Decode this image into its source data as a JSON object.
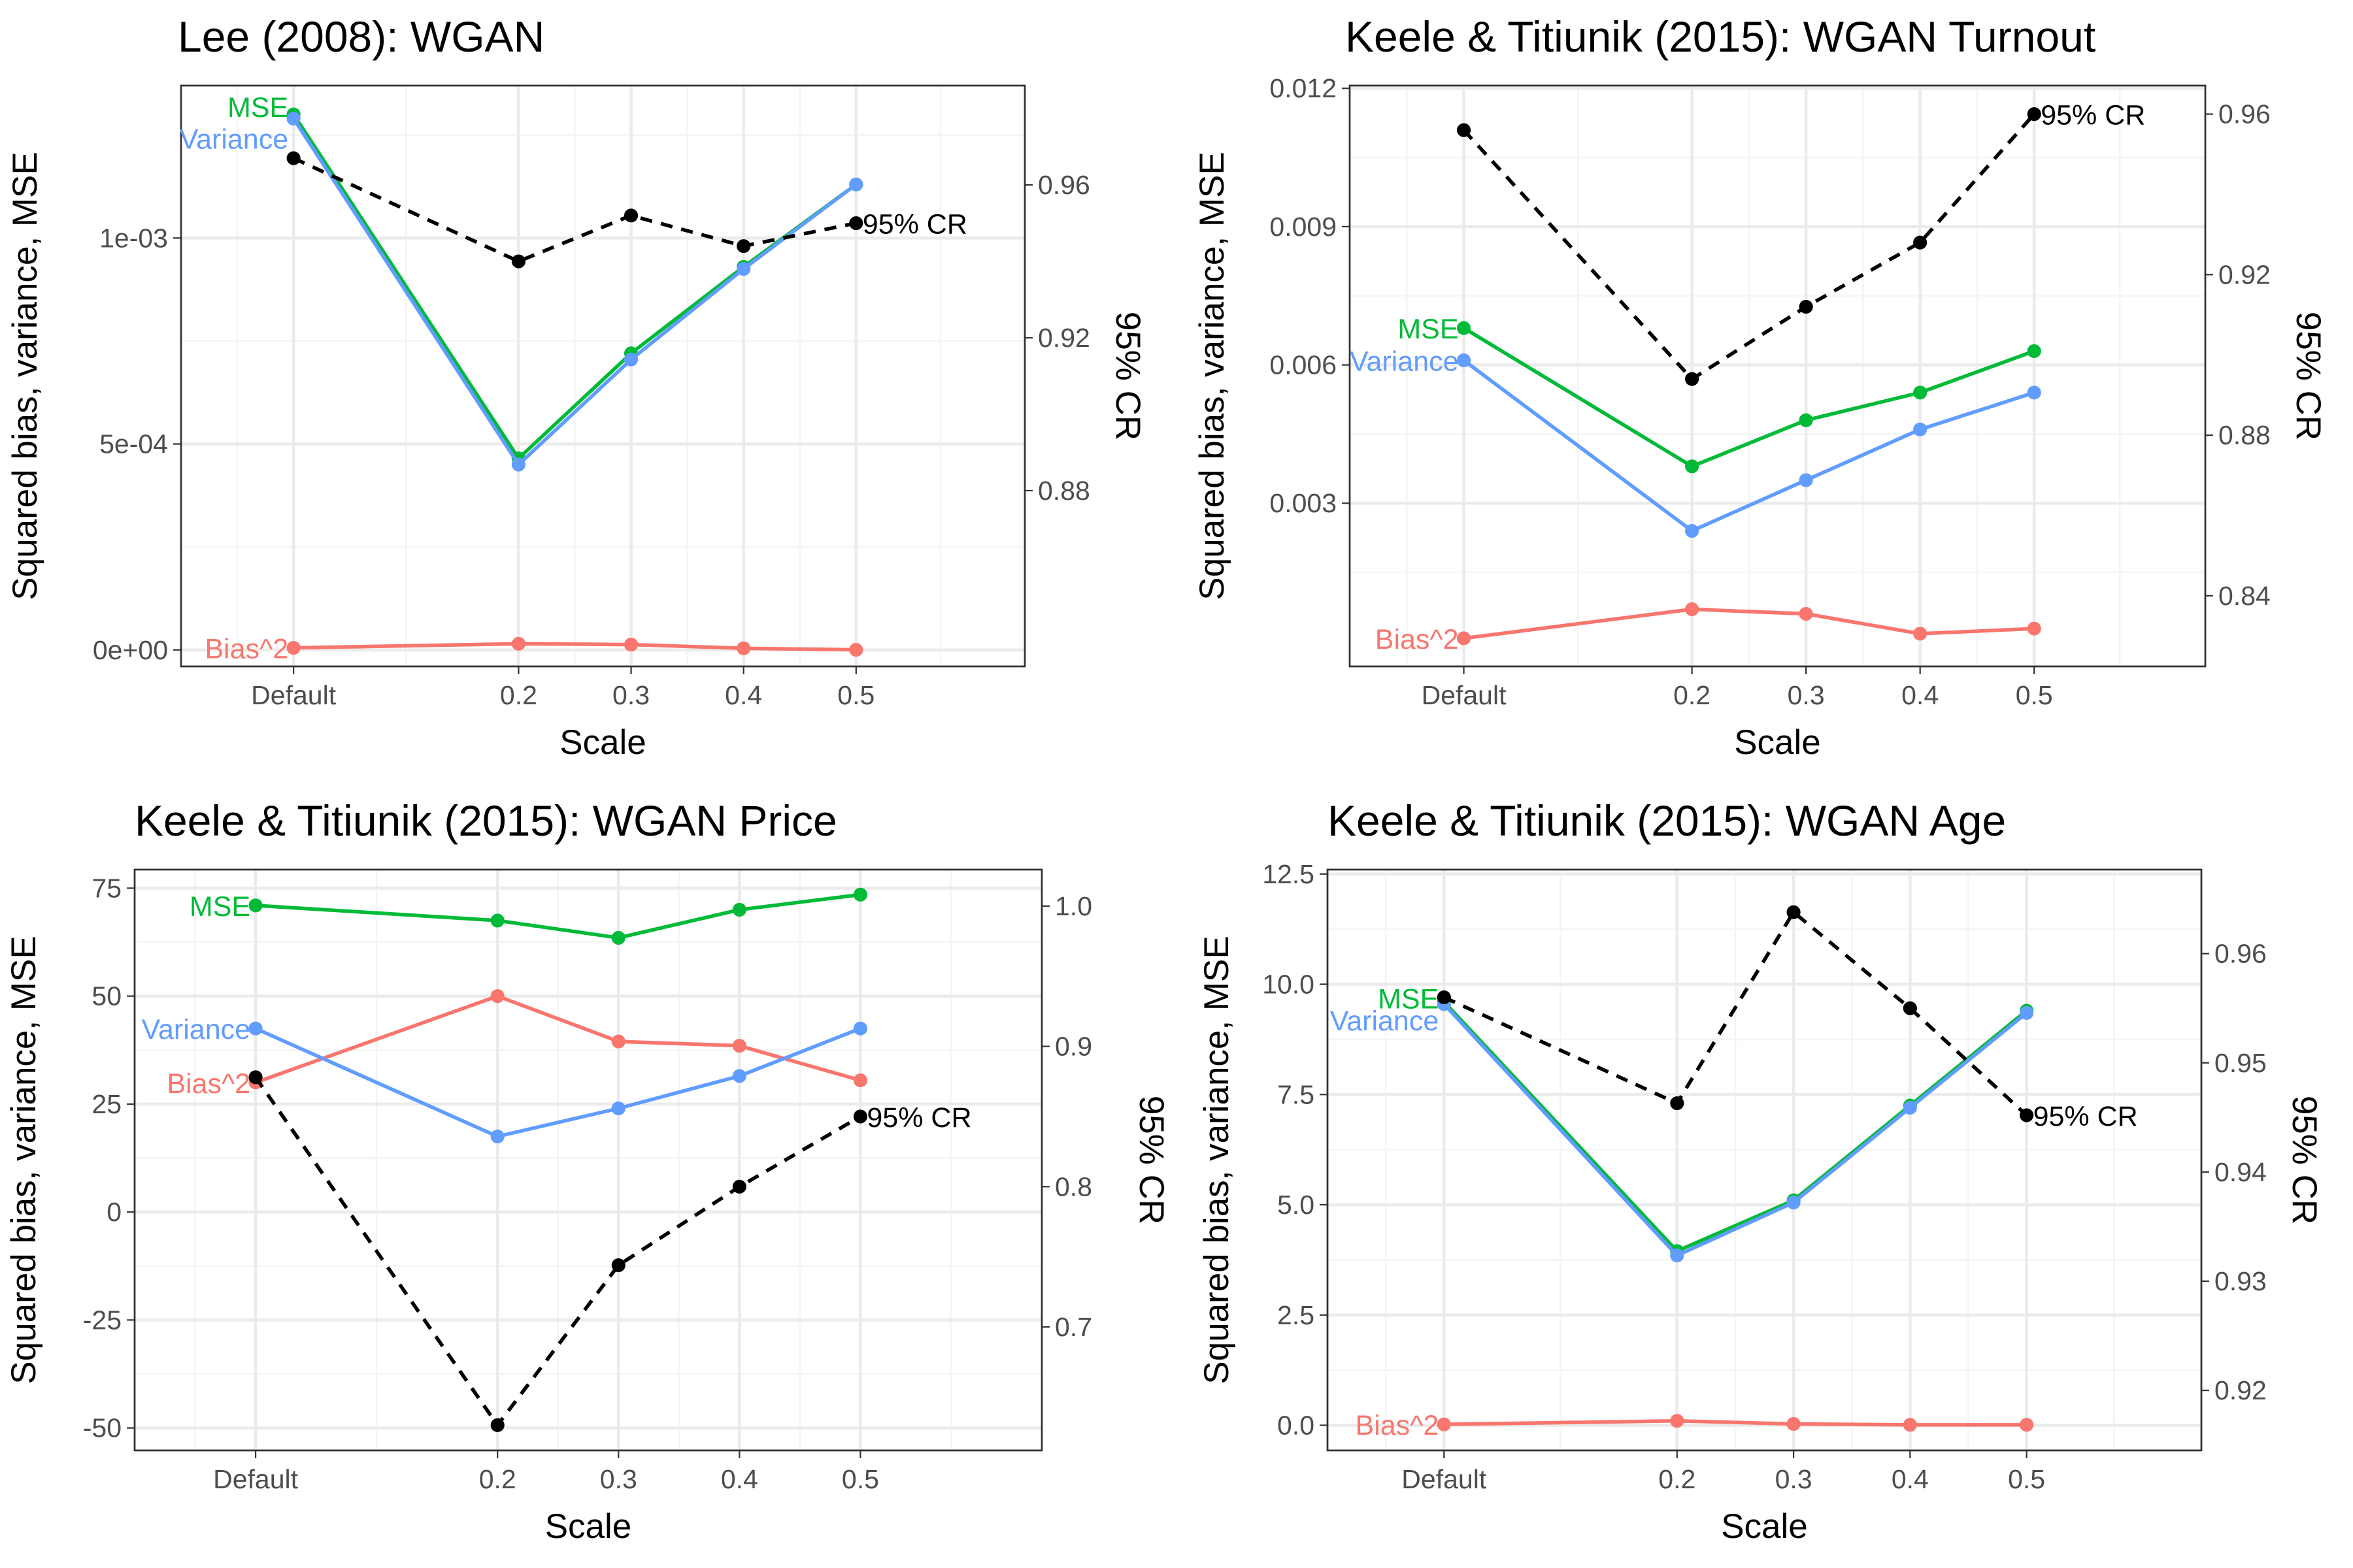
{
  "colors": {
    "mse": "#00BA38",
    "variance": "#619CFF",
    "bias": "#F8766D",
    "cr": "#000000",
    "grid_major": "#EBEBEB",
    "grid_minor": "#F5F5F5",
    "panel_border": "#333333"
  },
  "chart_data": [
    {
      "type": "line",
      "title": "Lee (2008): WGAN",
      "xlabel": "Scale",
      "ylabel": "Squared bias, variance, MSE",
      "y2label": "95% CR",
      "categories": [
        "Default",
        "0.2",
        "0.3",
        "0.4",
        "0.5"
      ],
      "xlim": [
        -0.1,
        0.65
      ],
      "ylim": [
        -4e-05,
        0.00137
      ],
      "yticks": [
        {
          "v": 0,
          "label": "0e+00"
        },
        {
          "v": 0.0005,
          "label": "5e-04"
        },
        {
          "v": 0.001,
          "label": "1e-03"
        }
      ],
      "y2lim": [
        0.834,
        0.986
      ],
      "y2ticks": [
        {
          "v": 0.88,
          "label": "0.88"
        },
        {
          "v": 0.92,
          "label": "0.92"
        },
        {
          "v": 0.96,
          "label": "0.96"
        }
      ],
      "series": [
        {
          "name": "Bias^2",
          "key": "bias",
          "axis": "left",
          "x": [
            0,
            0.2,
            0.3,
            0.4,
            0.5
          ],
          "values": [
            5e-06,
            1.5e-05,
            1.3e-05,
            4e-06,
            3e-07
          ]
        },
        {
          "name": "MSE",
          "key": "mse",
          "axis": "left",
          "x": [
            0,
            0.2,
            0.3,
            0.4,
            0.5
          ],
          "values": [
            0.0013,
            0.000465,
            0.00072,
            0.00093,
            0.00113
          ]
        },
        {
          "name": "Variance",
          "key": "variance",
          "axis": "left",
          "x": [
            0,
            0.2,
            0.3,
            0.4,
            0.5
          ],
          "values": [
            0.00129,
            0.00045,
            0.000705,
            0.000925,
            0.00113
          ]
        },
        {
          "name": "95% CR",
          "key": "cr",
          "axis": "right",
          "x": [
            0,
            0.2,
            0.3,
            0.4,
            0.5
          ],
          "values": [
            0.967,
            0.94,
            0.952,
            0.944,
            0.95
          ]
        }
      ]
    },
    {
      "type": "line",
      "title": "Keele & Titiunik (2015): WGAN Turnout",
      "xlabel": "Scale",
      "ylabel": "Squared bias, variance, MSE",
      "y2label": "95% CR",
      "categories": [
        "Default",
        "0.2",
        "0.3",
        "0.4",
        "0.5"
      ],
      "xlim": [
        -0.1,
        0.65
      ],
      "ylim": [
        -0.00054,
        0.01206
      ],
      "yticks": [
        {
          "v": 0.003,
          "label": "0.003"
        },
        {
          "v": 0.006,
          "label": "0.006"
        },
        {
          "v": 0.009,
          "label": "0.009"
        },
        {
          "v": 0.012,
          "label": "0.012"
        }
      ],
      "y2lim": [
        0.8224,
        0.9671
      ],
      "y2ticks": [
        {
          "v": 0.84,
          "label": "0.84"
        },
        {
          "v": 0.88,
          "label": "0.88"
        },
        {
          "v": 0.92,
          "label": "0.92"
        },
        {
          "v": 0.96,
          "label": "0.96"
        }
      ],
      "series": [
        {
          "name": "Bias^2",
          "key": "bias",
          "axis": "left",
          "x": [
            0,
            0.2,
            0.3,
            0.4,
            0.5
          ],
          "values": [
            7e-05,
            0.0007,
            0.0006,
            0.00017,
            0.00028
          ]
        },
        {
          "name": "MSE",
          "key": "mse",
          "axis": "left",
          "x": [
            0,
            0.2,
            0.3,
            0.4,
            0.5
          ],
          "values": [
            0.0068,
            0.0038,
            0.0048,
            0.0054,
            0.0063
          ]
        },
        {
          "name": "Variance",
          "key": "variance",
          "axis": "left",
          "x": [
            0,
            0.2,
            0.3,
            0.4,
            0.5
          ],
          "values": [
            0.0061,
            0.0024,
            0.0035,
            0.0046,
            0.0054
          ]
        },
        {
          "name": "95% CR",
          "key": "cr",
          "axis": "right",
          "x": [
            0,
            0.2,
            0.3,
            0.4,
            0.5
          ],
          "values": [
            0.956,
            0.894,
            0.912,
            0.928,
            0.96
          ]
        }
      ]
    },
    {
      "type": "line",
      "title": "Keele & Titiunik (2015): WGAN Price",
      "xlabel": "Scale",
      "ylabel": "Squared bias, variance, MSE",
      "y2label": "95% CR",
      "categories": [
        "Default",
        "0.2",
        "0.3",
        "0.4",
        "0.5"
      ],
      "xlim": [
        -0.1,
        0.65
      ],
      "ylim": [
        -55.2,
        79.3
      ],
      "yticks": [
        {
          "v": -50,
          "label": "-50"
        },
        {
          "v": -25,
          "label": "-25"
        },
        {
          "v": 0,
          "label": "0"
        },
        {
          "v": 25,
          "label": "25"
        },
        {
          "v": 50,
          "label": "50"
        },
        {
          "v": 75,
          "label": "75"
        }
      ],
      "y2lim": [
        0.612,
        1.026
      ],
      "y2ticks": [
        {
          "v": 0.7,
          "label": "0.7"
        },
        {
          "v": 0.8,
          "label": "0.8"
        },
        {
          "v": 0.9,
          "label": "0.9"
        },
        {
          "v": 1.0,
          "label": "1.0"
        }
      ],
      "series": [
        {
          "name": "Bias^2",
          "key": "bias",
          "axis": "left",
          "x": [
            0,
            0.2,
            0.3,
            0.4,
            0.5
          ],
          "values": [
            30,
            50,
            39.5,
            38.5,
            30.5
          ]
        },
        {
          "name": "MSE",
          "key": "mse",
          "axis": "left",
          "x": [
            0,
            0.2,
            0.3,
            0.4,
            0.5
          ],
          "values": [
            71,
            67.5,
            63.5,
            70,
            73.5
          ]
        },
        {
          "name": "Variance",
          "key": "variance",
          "axis": "left",
          "x": [
            0,
            0.2,
            0.3,
            0.4,
            0.5
          ],
          "values": [
            42.5,
            17.5,
            24,
            31.5,
            42.5
          ]
        },
        {
          "name": "95% CR",
          "key": "cr",
          "axis": "right",
          "x": [
            0,
            0.2,
            0.3,
            0.4,
            0.5
          ],
          "values": [
            0.878,
            0.63,
            0.744,
            0.8,
            0.85
          ]
        }
      ]
    },
    {
      "type": "line",
      "title": "Keele & Titiunik (2015): WGAN Age",
      "xlabel": "Scale",
      "ylabel": "Squared bias, variance, MSE",
      "y2label": "95% CR",
      "categories": [
        "Default",
        "0.2",
        "0.3",
        "0.4",
        "0.5"
      ],
      "xlim": [
        -0.1,
        0.65
      ],
      "ylim": [
        -0.57,
        12.6
      ],
      "yticks": [
        {
          "v": 0,
          "label": "0.0"
        },
        {
          "v": 2.5,
          "label": "2.5"
        },
        {
          "v": 5,
          "label": "5.0"
        },
        {
          "v": 7.5,
          "label": "7.5"
        },
        {
          "v": 10,
          "label": "10.0"
        },
        {
          "v": 12.5,
          "label": "12.5"
        }
      ],
      "y2lim": [
        0.9145,
        0.9677
      ],
      "y2ticks": [
        {
          "v": 0.92,
          "label": "0.92"
        },
        {
          "v": 0.93,
          "label": "0.93"
        },
        {
          "v": 0.94,
          "label": "0.94"
        },
        {
          "v": 0.95,
          "label": "0.95"
        },
        {
          "v": 0.96,
          "label": "0.96"
        }
      ],
      "series": [
        {
          "name": "Bias^2",
          "key": "bias",
          "axis": "left",
          "x": [
            0,
            0.2,
            0.3,
            0.4,
            0.5
          ],
          "values": [
            0.02,
            0.1,
            0.03,
            0.01,
            0.01
          ]
        },
        {
          "name": "MSE",
          "key": "mse",
          "axis": "left",
          "x": [
            0,
            0.2,
            0.3,
            0.4,
            0.5
          ],
          "values": [
            9.6,
            3.95,
            5.1,
            7.25,
            9.4
          ]
        },
        {
          "name": "Variance",
          "key": "variance",
          "axis": "left",
          "x": [
            0,
            0.2,
            0.3,
            0.4,
            0.5
          ],
          "values": [
            9.55,
            3.85,
            5.05,
            7.2,
            9.35
          ]
        },
        {
          "name": "95% CR",
          "key": "cr",
          "axis": "right",
          "x": [
            0,
            0.2,
            0.3,
            0.4,
            0.5
          ],
          "values": [
            0.956,
            0.9463,
            0.9638,
            0.955,
            0.9452
          ]
        }
      ]
    }
  ]
}
